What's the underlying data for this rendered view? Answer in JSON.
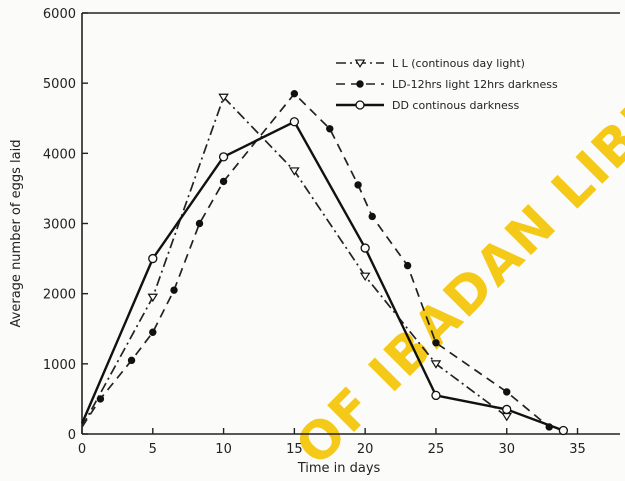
{
  "chart_data": {
    "type": "line",
    "xlabel": "Time in days",
    "ylabel": "Average number of eggs laid",
    "xlim": [
      0,
      38
    ],
    "ylim": [
      0,
      6000
    ],
    "xticks": [
      0,
      5,
      10,
      15,
      20,
      25,
      30,
      35
    ],
    "yticks": [
      0,
      1000,
      2000,
      3000,
      4000,
      5000,
      6000
    ],
    "grid": false,
    "legend_position": "top-right",
    "series": [
      {
        "name": "L L (continous day light)",
        "line_style": "dash-dot",
        "marker": "triangle",
        "color": "#222222",
        "points": [
          [
            0,
            100
          ],
          [
            5,
            1950
          ],
          [
            10,
            4800
          ],
          [
            15,
            3750
          ],
          [
            20,
            2250
          ],
          [
            25,
            1000
          ],
          [
            30,
            250
          ]
        ]
      },
      {
        "name": "LD-12hrs light 12hrs darkness",
        "line_style": "dashed",
        "marker": "filled-circle",
        "color": "#222222",
        "points": [
          [
            0,
            100
          ],
          [
            1.3,
            500
          ],
          [
            3.5,
            1050
          ],
          [
            5,
            1450
          ],
          [
            6.5,
            2050
          ],
          [
            8.3,
            3000
          ],
          [
            10,
            3600
          ],
          [
            15,
            4850
          ],
          [
            17.5,
            4350
          ],
          [
            19.5,
            3550
          ],
          [
            20.5,
            3100
          ],
          [
            23,
            2400
          ],
          [
            25,
            1300
          ],
          [
            30,
            600
          ],
          [
            33,
            100
          ]
        ]
      },
      {
        "name": "DD  continous darkness",
        "line_style": "solid",
        "marker": "open-circle",
        "color": "#111111",
        "points": [
          [
            0,
            150
          ],
          [
            5,
            2500
          ],
          [
            10,
            3950
          ],
          [
            15,
            4450
          ],
          [
            20,
            2650
          ],
          [
            25,
            550
          ],
          [
            30,
            350
          ],
          [
            34,
            50
          ]
        ]
      }
    ],
    "watermark": "OF IBADAN LIBR"
  }
}
